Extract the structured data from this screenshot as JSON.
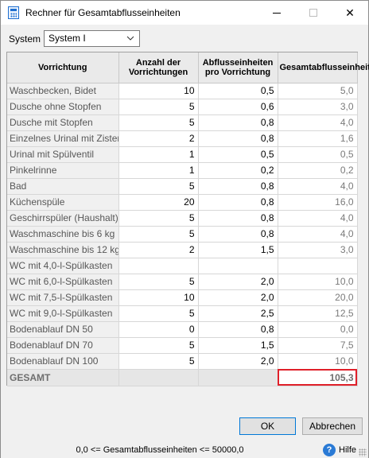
{
  "window": {
    "title": "Rechner für Gesamtabflusseinheiten",
    "controls": {
      "minimize": "",
      "maximize": "",
      "close": "✕"
    }
  },
  "system": {
    "label": "System",
    "value": "System I"
  },
  "table": {
    "headers": [
      "Vorrichtung",
      "Anzahl der Vorrichtungen",
      "Abflusseinheiten pro Vorrichtung",
      "Gesamtabflusseinheiten"
    ],
    "rows": [
      {
        "name": "Waschbecken, Bidet",
        "count": "10",
        "du": "0,5",
        "total": "5,0"
      },
      {
        "name": "Dusche ohne Stopfen",
        "count": "5",
        "du": "0,6",
        "total": "3,0"
      },
      {
        "name": "Dusche mit Stopfen",
        "count": "5",
        "du": "0,8",
        "total": "4,0"
      },
      {
        "name": "Einzelnes Urinal mit Zisterne",
        "count": "2",
        "du": "0,8",
        "total": "1,6"
      },
      {
        "name": "Urinal mit Spülventil",
        "count": "1",
        "du": "0,5",
        "total": "0,5"
      },
      {
        "name": "Pinkelrinne",
        "count": "1",
        "du": "0,2",
        "total": "0,2"
      },
      {
        "name": "Bad",
        "count": "5",
        "du": "0,8",
        "total": "4,0"
      },
      {
        "name": "Küchenspüle",
        "count": "20",
        "du": "0,8",
        "total": "16,0"
      },
      {
        "name": "Geschirrspüler (Haushalt)",
        "count": "5",
        "du": "0,8",
        "total": "4,0"
      },
      {
        "name": "Waschmaschine bis 6 kg",
        "count": "5",
        "du": "0,8",
        "total": "4,0"
      },
      {
        "name": "Waschmaschine bis 12 kg",
        "count": "2",
        "du": "1,5",
        "total": "3,0"
      },
      {
        "name": "WC mit 4,0-l-Spülkasten",
        "count": "",
        "du": "",
        "total": ""
      },
      {
        "name": "WC mit 6,0-l-Spülkasten",
        "count": "5",
        "du": "2,0",
        "total": "10,0"
      },
      {
        "name": "WC mit 7,5-l-Spülkasten",
        "count": "10",
        "du": "2,0",
        "total": "20,0"
      },
      {
        "name": "WC mit 9,0-l-Spülkasten",
        "count": "5",
        "du": "2,5",
        "total": "12,5"
      },
      {
        "name": "Bodenablauf DN 50",
        "count": "0",
        "du": "0,8",
        "total": "0,0"
      },
      {
        "name": "Bodenablauf DN 70",
        "count": "5",
        "du": "1,5",
        "total": "7,5"
      },
      {
        "name": "Bodenablauf DN 100",
        "count": "5",
        "du": "2,0",
        "total": "10,0"
      }
    ],
    "total": {
      "label": "GESAMT",
      "value": "105,3"
    }
  },
  "buttons": {
    "ok": "OK",
    "cancel": "Abbrechen"
  },
  "status": {
    "range": "0,0 <= Gesamtabflusseinheiten <= 50000,0",
    "help": "Hilfe",
    "help_icon_glyph": "?"
  },
  "colors": {
    "highlight": "#e0202a",
    "header_bg": "#eaeaea",
    "name_cell_bg": "#f0f0f0"
  }
}
